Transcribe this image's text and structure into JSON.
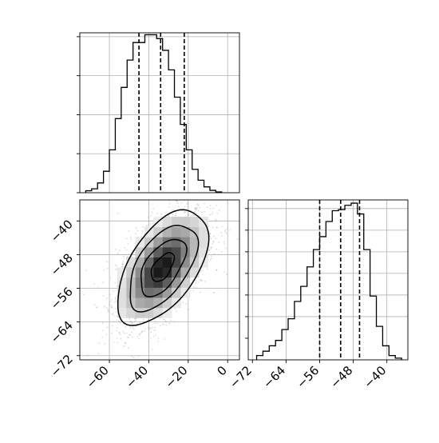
{
  "chart_data": [
    {
      "type": "histogram",
      "panel": "marginal-x",
      "xlim": [
        -75,
        6
      ],
      "ylim": [
        0,
        0.041
      ],
      "grid": true,
      "bins": [
        {
          "x0": -72,
          "x1": -69,
          "density": 0.0005
        },
        {
          "x0": -69,
          "x1": -66,
          "density": 0.001
        },
        {
          "x0": -66,
          "x1": -63,
          "density": 0.0025
        },
        {
          "x0": -63,
          "x1": -60,
          "density": 0.0055
        },
        {
          "x0": -60,
          "x1": -57,
          "density": 0.011
        },
        {
          "x0": -57,
          "x1": -54,
          "density": 0.019
        },
        {
          "x0": -54,
          "x1": -51,
          "density": 0.027
        },
        {
          "x0": -51,
          "x1": -48,
          "density": 0.034
        },
        {
          "x0": -48,
          "x1": -45,
          "density": 0.0385
        },
        {
          "x0": -45,
          "x1": -42,
          "density": 0.0385
        },
        {
          "x0": -42,
          "x1": -39,
          "density": 0.0405
        },
        {
          "x0": -39,
          "x1": -36,
          "density": 0.0405
        },
        {
          "x0": -36,
          "x1": -33,
          "density": 0.0395
        },
        {
          "x0": -33,
          "x1": -30,
          "density": 0.0365
        },
        {
          "x0": -30,
          "x1": -27,
          "density": 0.0315
        },
        {
          "x0": -27,
          "x1": -24,
          "density": 0.0245
        },
        {
          "x0": -24,
          "x1": -21,
          "density": 0.0175
        },
        {
          "x0": -21,
          "x1": -18,
          "density": 0.011
        },
        {
          "x0": -18,
          "x1": -15,
          "density": 0.006
        },
        {
          "x0": -15,
          "x1": -12,
          "density": 0.0032
        },
        {
          "x0": -12,
          "x1": -9,
          "density": 0.0015
        },
        {
          "x0": -9,
          "x1": -6,
          "density": 0.0006
        },
        {
          "x0": -6,
          "x1": -3,
          "density": 0.0002
        }
      ],
      "quantile_lines": [
        -45,
        -34,
        -22
      ]
    },
    {
      "type": "scatter-2d-density",
      "panel": "joint",
      "xlim": [
        -75,
        6
      ],
      "ylim": [
        -73,
        -35
      ],
      "xticks": [
        "−60",
        "−40",
        "−20",
        "0"
      ],
      "xtick_values": [
        -60,
        -40,
        -20,
        0
      ],
      "yticks": [
        "−40",
        "−48",
        "−56",
        "−64",
        "−72"
      ],
      "ytick_values": [
        -40,
        -48,
        -56,
        -64,
        -72
      ],
      "center": {
        "x": -33,
        "y": -51
      },
      "spread": {
        "x": 11.5,
        "y": 6.8,
        "rho": 0.55
      },
      "contour_levels_sigma": [
        0.5,
        1.0,
        1.5,
        2.0
      ],
      "n_points": 2500,
      "point_color": "#9a9a9a",
      "contour_color": "#000000"
    },
    {
      "type": "histogram",
      "panel": "marginal-y",
      "xlim": [
        -73,
        -35
      ],
      "ylim": [
        0,
        0.074
      ],
      "xticks": [
        "−72",
        "−64",
        "−56",
        "−48",
        "−40"
      ],
      "xtick_values": [
        -72,
        -64,
        -56,
        -48,
        -40
      ],
      "grid": true,
      "bins": [
        {
          "x0": -71,
          "x1": -69.5,
          "density": 0.002
        },
        {
          "x0": -69.5,
          "x1": -68,
          "density": 0.004
        },
        {
          "x0": -68,
          "x1": -66.5,
          "density": 0.0065
        },
        {
          "x0": -66.5,
          "x1": -65,
          "density": 0.009
        },
        {
          "x0": -65,
          "x1": -63.5,
          "density": 0.014
        },
        {
          "x0": -63.5,
          "x1": -62,
          "density": 0.019
        },
        {
          "x0": -62,
          "x1": -60.5,
          "density": 0.027
        },
        {
          "x0": -60.5,
          "x1": -59,
          "density": 0.034
        },
        {
          "x0": -59,
          "x1": -57.5,
          "density": 0.043
        },
        {
          "x0": -57.5,
          "x1": -56,
          "density": 0.051
        },
        {
          "x0": -56,
          "x1": -54.5,
          "density": 0.057
        },
        {
          "x0": -54.5,
          "x1": -53,
          "density": 0.064
        },
        {
          "x0": -53,
          "x1": -51.5,
          "density": 0.069
        },
        {
          "x0": -51.5,
          "x1": -50,
          "density": 0.0695
        },
        {
          "x0": -50,
          "x1": -48.5,
          "density": 0.0715
        },
        {
          "x0": -48.5,
          "x1": -47,
          "density": 0.0725
        },
        {
          "x0": -47,
          "x1": -45.5,
          "density": 0.0675
        },
        {
          "x0": -45.5,
          "x1": -44,
          "density": 0.051
        },
        {
          "x0": -44,
          "x1": -42.5,
          "density": 0.0295
        },
        {
          "x0": -42.5,
          "x1": -41,
          "density": 0.0155
        },
        {
          "x0": -41,
          "x1": -39.5,
          "density": 0.0065
        },
        {
          "x0": -39.5,
          "x1": -38,
          "density": 0.002
        },
        {
          "x0": -38,
          "x1": -36.5,
          "density": 0.0008
        }
      ],
      "quantile_lines": [
        -56,
        -51,
        -46.5
      ]
    }
  ]
}
